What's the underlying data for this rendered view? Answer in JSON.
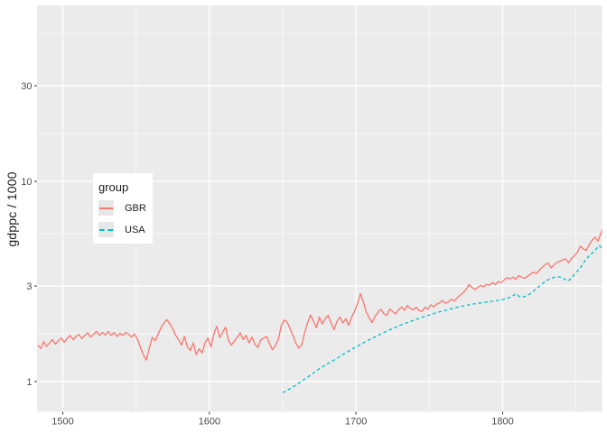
{
  "figure": {
    "background": "#FFFFFF",
    "panel_background": "#EBEBEB",
    "gridline_color": "#FFFFFF",
    "tick_mark_color": "#333333",
    "tick_label_color": "#4D4D4D",
    "axis_title_color": "#1A1A1A"
  },
  "y_axis": {
    "title": "gdppc / 1000",
    "scale": "log10",
    "ticks": [
      {
        "label": "1",
        "value": 1
      },
      {
        "label": "3",
        "value": 3
      },
      {
        "label": "10",
        "value": 10
      },
      {
        "label": "30",
        "value": 30
      }
    ],
    "minor": [
      1.7321,
      5.4772,
      17.3205,
      54.7723
    ]
  },
  "x_axis": {
    "title": "",
    "ticks": [
      {
        "label": "1500",
        "value": 1500
      },
      {
        "label": "1600",
        "value": 1600
      },
      {
        "label": "1700",
        "value": 1700
      },
      {
        "label": "1800",
        "value": 1800
      }
    ],
    "minor": [
      1550,
      1650,
      1750,
      1850
    ]
  },
  "legend": {
    "title": "group",
    "items": [
      {
        "label": "GBR",
        "line": "solid",
        "color": "#F8766D"
      },
      {
        "label": "USA",
        "line": "dashed",
        "color": "#00BFC4"
      }
    ]
  },
  "chart_data": {
    "type": "line",
    "title": "",
    "xlabel": "",
    "ylabel": "gdppc / 1000",
    "y_scale": "log10",
    "x_domain": [
      1482.4,
      1867.8
    ],
    "y_domain": [
      0.703,
      75.6
    ],
    "grid": true,
    "legend_position": "inside-left",
    "series": [
      {
        "name": "GBR",
        "color": "#F8766D",
        "linetype": "solid",
        "points": [
          [
            1483,
            1.52
          ],
          [
            1485,
            1.46
          ],
          [
            1487,
            1.58
          ],
          [
            1489,
            1.5
          ],
          [
            1491,
            1.56
          ],
          [
            1493,
            1.62
          ],
          [
            1495,
            1.54
          ],
          [
            1497,
            1.6
          ],
          [
            1499,
            1.65
          ],
          [
            1501,
            1.57
          ],
          [
            1503,
            1.64
          ],
          [
            1505,
            1.7
          ],
          [
            1507,
            1.62
          ],
          [
            1509,
            1.68
          ],
          [
            1511,
            1.72
          ],
          [
            1513,
            1.64
          ],
          [
            1515,
            1.7
          ],
          [
            1517,
            1.75
          ],
          [
            1519,
            1.67
          ],
          [
            1521,
            1.72
          ],
          [
            1523,
            1.78
          ],
          [
            1525,
            1.7
          ],
          [
            1527,
            1.76
          ],
          [
            1529,
            1.71
          ],
          [
            1531,
            1.78
          ],
          [
            1533,
            1.7
          ],
          [
            1535,
            1.76
          ],
          [
            1537,
            1.68
          ],
          [
            1539,
            1.74
          ],
          [
            1541,
            1.7
          ],
          [
            1543,
            1.76
          ],
          [
            1545,
            1.72
          ],
          [
            1547,
            1.67
          ],
          [
            1549,
            1.73
          ],
          [
            1551,
            1.62
          ],
          [
            1553,
            1.48
          ],
          [
            1555,
            1.36
          ],
          [
            1557,
            1.28
          ],
          [
            1559,
            1.47
          ],
          [
            1561,
            1.66
          ],
          [
            1563,
            1.6
          ],
          [
            1565,
            1.72
          ],
          [
            1567,
            1.86
          ],
          [
            1569,
            1.96
          ],
          [
            1571,
            2.04
          ],
          [
            1573,
            1.94
          ],
          [
            1575,
            1.84
          ],
          [
            1577,
            1.7
          ],
          [
            1579,
            1.62
          ],
          [
            1581,
            1.52
          ],
          [
            1583,
            1.68
          ],
          [
            1585,
            1.49
          ],
          [
            1587,
            1.43
          ],
          [
            1589,
            1.56
          ],
          [
            1591,
            1.36
          ],
          [
            1593,
            1.46
          ],
          [
            1595,
            1.39
          ],
          [
            1597,
            1.56
          ],
          [
            1599,
            1.65
          ],
          [
            1601,
            1.49
          ],
          [
            1603,
            1.72
          ],
          [
            1605,
            1.89
          ],
          [
            1607,
            1.66
          ],
          [
            1609,
            1.76
          ],
          [
            1611,
            1.87
          ],
          [
            1613,
            1.61
          ],
          [
            1615,
            1.52
          ],
          [
            1617,
            1.59
          ],
          [
            1619,
            1.66
          ],
          [
            1621,
            1.75
          ],
          [
            1623,
            1.62
          ],
          [
            1625,
            1.7
          ],
          [
            1627,
            1.56
          ],
          [
            1629,
            1.67
          ],
          [
            1631,
            1.54
          ],
          [
            1633,
            1.48
          ],
          [
            1635,
            1.61
          ],
          [
            1637,
            1.65
          ],
          [
            1639,
            1.68
          ],
          [
            1641,
            1.55
          ],
          [
            1643,
            1.44
          ],
          [
            1645,
            1.51
          ],
          [
            1647,
            1.62
          ],
          [
            1649,
            1.9
          ],
          [
            1651,
            2.03
          ],
          [
            1653,
            1.98
          ],
          [
            1655,
            1.84
          ],
          [
            1657,
            1.7
          ],
          [
            1659,
            1.55
          ],
          [
            1661,
            1.47
          ],
          [
            1663,
            1.53
          ],
          [
            1665,
            1.76
          ],
          [
            1667,
            1.97
          ],
          [
            1669,
            2.15
          ],
          [
            1671,
            2.0
          ],
          [
            1673,
            1.86
          ],
          [
            1675,
            2.1
          ],
          [
            1677,
            1.94
          ],
          [
            1679,
            2.06
          ],
          [
            1681,
            2.14
          ],
          [
            1683,
            1.96
          ],
          [
            1685,
            1.82
          ],
          [
            1687,
            2.0
          ],
          [
            1689,
            2.1
          ],
          [
            1691,
            1.96
          ],
          [
            1693,
            2.06
          ],
          [
            1695,
            1.91
          ],
          [
            1697,
            2.1
          ],
          [
            1699,
            2.24
          ],
          [
            1701,
            2.45
          ],
          [
            1703,
            2.75
          ],
          [
            1705,
            2.5
          ],
          [
            1707,
            2.22
          ],
          [
            1709,
            2.08
          ],
          [
            1711,
            1.97
          ],
          [
            1713,
            2.12
          ],
          [
            1715,
            2.22
          ],
          [
            1717,
            2.3
          ],
          [
            1719,
            2.18
          ],
          [
            1721,
            2.14
          ],
          [
            1723,
            2.3
          ],
          [
            1725,
            2.24
          ],
          [
            1727,
            2.18
          ],
          [
            1729,
            2.28
          ],
          [
            1731,
            2.36
          ],
          [
            1733,
            2.27
          ],
          [
            1735,
            2.4
          ],
          [
            1737,
            2.32
          ],
          [
            1739,
            2.28
          ],
          [
            1741,
            2.35
          ],
          [
            1743,
            2.26
          ],
          [
            1745,
            2.24
          ],
          [
            1747,
            2.35
          ],
          [
            1749,
            2.3
          ],
          [
            1751,
            2.42
          ],
          [
            1753,
            2.36
          ],
          [
            1755,
            2.44
          ],
          [
            1757,
            2.47
          ],
          [
            1759,
            2.54
          ],
          [
            1761,
            2.46
          ],
          [
            1763,
            2.5
          ],
          [
            1765,
            2.58
          ],
          [
            1767,
            2.52
          ],
          [
            1769,
            2.62
          ],
          [
            1771,
            2.7
          ],
          [
            1773,
            2.78
          ],
          [
            1775,
            2.88
          ],
          [
            1777,
            3.05
          ],
          [
            1779,
            2.96
          ],
          [
            1781,
            2.88
          ],
          [
            1783,
            2.95
          ],
          [
            1785,
            3.02
          ],
          [
            1787,
            2.97
          ],
          [
            1789,
            3.06
          ],
          [
            1791,
            3.02
          ],
          [
            1793,
            3.12
          ],
          [
            1795,
            3.05
          ],
          [
            1797,
            3.16
          ],
          [
            1799,
            3.12
          ],
          [
            1801,
            3.22
          ],
          [
            1803,
            3.3
          ],
          [
            1805,
            3.26
          ],
          [
            1807,
            3.32
          ],
          [
            1809,
            3.24
          ],
          [
            1811,
            3.38
          ],
          [
            1813,
            3.32
          ],
          [
            1815,
            3.28
          ],
          [
            1817,
            3.36
          ],
          [
            1819,
            3.44
          ],
          [
            1821,
            3.52
          ],
          [
            1823,
            3.46
          ],
          [
            1825,
            3.6
          ],
          [
            1827,
            3.72
          ],
          [
            1829,
            3.84
          ],
          [
            1831,
            3.9
          ],
          [
            1833,
            3.7
          ],
          [
            1835,
            3.82
          ],
          [
            1837,
            3.94
          ],
          [
            1839,
            3.98
          ],
          [
            1841,
            4.06
          ],
          [
            1843,
            4.1
          ],
          [
            1845,
            3.92
          ],
          [
            1847,
            4.12
          ],
          [
            1849,
            4.26
          ],
          [
            1851,
            4.42
          ],
          [
            1853,
            4.74
          ],
          [
            1855,
            4.6
          ],
          [
            1857,
            4.52
          ],
          [
            1859,
            4.82
          ],
          [
            1861,
            5.08
          ],
          [
            1863,
            5.26
          ],
          [
            1865,
            5.02
          ],
          [
            1867,
            5.52
          ],
          [
            1868,
            5.75
          ]
        ]
      },
      {
        "name": "USA",
        "color": "#00BFC4",
        "linetype": "dashed",
        "points": [
          [
            1650,
            0.88
          ],
          [
            1655,
            0.92
          ],
          [
            1660,
            0.97
          ],
          [
            1665,
            1.03
          ],
          [
            1670,
            1.09
          ],
          [
            1675,
            1.16
          ],
          [
            1680,
            1.22
          ],
          [
            1685,
            1.28
          ],
          [
            1690,
            1.35
          ],
          [
            1695,
            1.42
          ],
          [
            1700,
            1.49
          ],
          [
            1705,
            1.56
          ],
          [
            1710,
            1.63
          ],
          [
            1715,
            1.7
          ],
          [
            1720,
            1.77
          ],
          [
            1725,
            1.84
          ],
          [
            1730,
            1.91
          ],
          [
            1735,
            1.97
          ],
          [
            1740,
            2.03
          ],
          [
            1745,
            2.09
          ],
          [
            1750,
            2.15
          ],
          [
            1755,
            2.21
          ],
          [
            1760,
            2.26
          ],
          [
            1765,
            2.31
          ],
          [
            1770,
            2.36
          ],
          [
            1775,
            2.4
          ],
          [
            1780,
            2.44
          ],
          [
            1785,
            2.47
          ],
          [
            1790,
            2.5
          ],
          [
            1795,
            2.53
          ],
          [
            1800,
            2.57
          ],
          [
            1803,
            2.6
          ],
          [
            1806,
            2.66
          ],
          [
            1809,
            2.74
          ],
          [
            1812,
            2.64
          ],
          [
            1815,
            2.66
          ],
          [
            1818,
            2.72
          ],
          [
            1821,
            2.83
          ],
          [
            1824,
            2.95
          ],
          [
            1827,
            3.08
          ],
          [
            1830,
            3.2
          ],
          [
            1833,
            3.28
          ],
          [
            1836,
            3.33
          ],
          [
            1839,
            3.33
          ],
          [
            1842,
            3.25
          ],
          [
            1845,
            3.18
          ],
          [
            1847,
            3.3
          ],
          [
            1850,
            3.5
          ],
          [
            1853,
            3.7
          ],
          [
            1856,
            4.0
          ],
          [
            1859,
            4.24
          ],
          [
            1861,
            4.38
          ],
          [
            1863,
            4.52
          ],
          [
            1865,
            4.7
          ],
          [
            1866,
            4.78
          ],
          [
            1868,
            4.6
          ]
        ]
      }
    ]
  }
}
